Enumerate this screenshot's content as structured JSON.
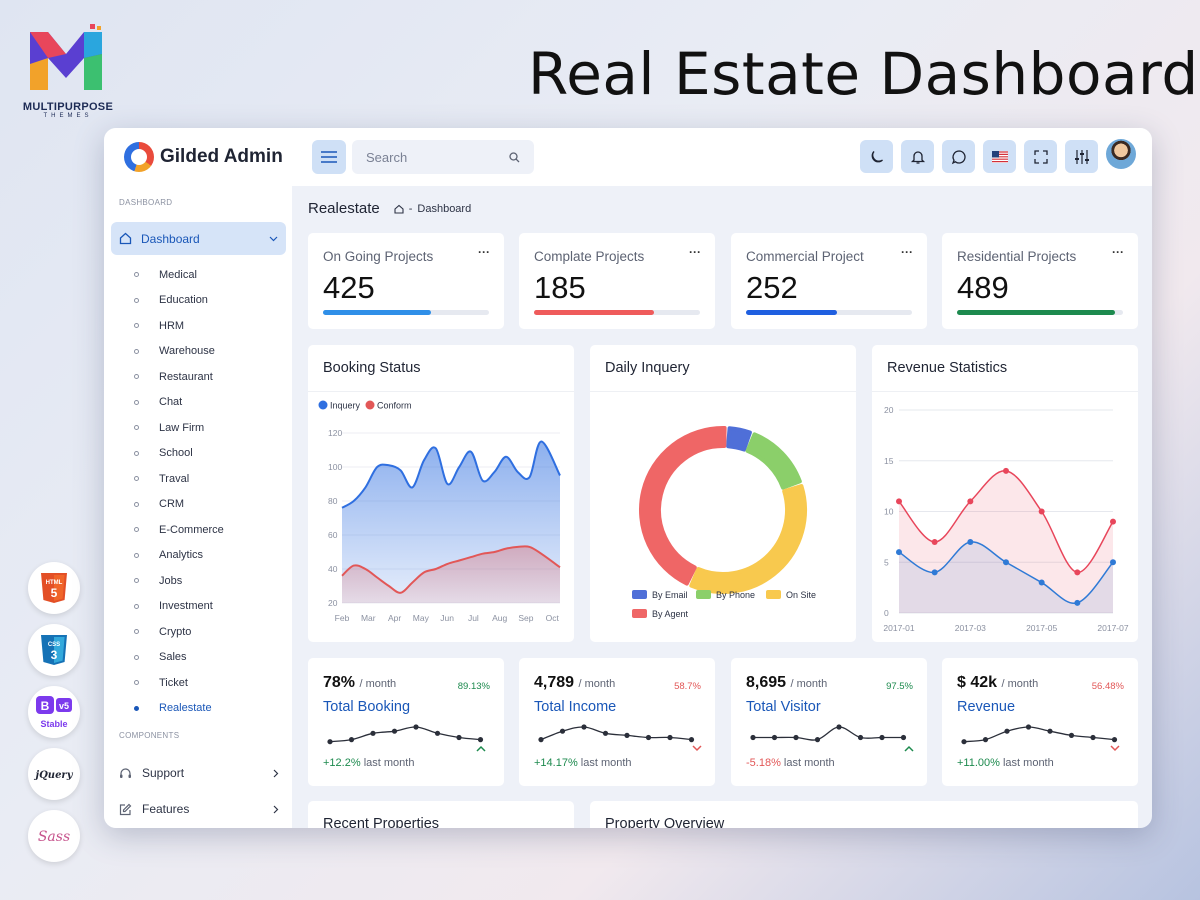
{
  "promo": {
    "brand_name": "MULTIPURPOSE",
    "brand_sub": "THEMES",
    "title": "Real Estate Dashboard",
    "badges": [
      {
        "name": "html5-badge",
        "label": "HTML 5",
        "color": "#e34f26"
      },
      {
        "name": "css3-badge",
        "label": "CSS 3",
        "color": "#1572b6"
      },
      {
        "name": "bootstrap-badge",
        "label": "B v5 Stable",
        "color": "#7c3aed"
      },
      {
        "name": "jquery-badge",
        "label": "jQuery",
        "color": "#1f2433"
      },
      {
        "name": "sass-badge",
        "label": "Sass",
        "color": "#c6538c"
      }
    ]
  },
  "app": {
    "logo_text": "Gilded Admin",
    "search_placeholder": "Search",
    "toolbar_icons": [
      "moon-icon",
      "bell-icon",
      "chat-icon",
      "us-flag-icon",
      "fullscreen-icon",
      "settings-sliders-icon"
    ]
  },
  "sidebar": {
    "section_dashboard": "DASHBOARD",
    "active_label": "Dashboard",
    "items": [
      "Medical",
      "Education",
      "HRM",
      "Warehouse",
      "Restaurant",
      "Chat",
      "Law Firm",
      "School",
      "Traval",
      "CRM",
      "E-Commerce",
      "Analytics",
      "Jobs",
      "Investment",
      "Crypto",
      "Sales",
      "Ticket",
      "Realestate"
    ],
    "active_item": "Realestate",
    "section_components": "COMPONENTS",
    "support": "Support",
    "features": "Features"
  },
  "breadcrumb": {
    "title": "Realestate",
    "path": "Dashboard"
  },
  "stats": [
    {
      "label": "On Going Projects",
      "value": "425",
      "progress": 0.65,
      "color": "#2f8fe8"
    },
    {
      "label": "Complate Projects",
      "value": "185",
      "progress": 0.72,
      "color": "#ef5b5b"
    },
    {
      "label": "Commercial Project",
      "value": "252",
      "progress": 0.55,
      "color": "#1f5fe0"
    },
    {
      "label": "Residential Projects",
      "value": "489",
      "progress": 0.95,
      "color": "#1d8a4e"
    }
  ],
  "more_glyph": "···",
  "panels": {
    "booking": "Booking Status",
    "daily": "Daily Inquery",
    "revenue": "Revenue Statistics",
    "recent": "Recent Properties",
    "overview": "Property Overview"
  },
  "chart_data": [
    {
      "type": "area",
      "title": "Booking Status",
      "categories": [
        "Feb",
        "Mar",
        "Apr",
        "May",
        "Jun",
        "Jul",
        "Aug",
        "Sep",
        "Oct"
      ],
      "ylim": [
        20,
        120
      ],
      "yticks": [
        20,
        40,
        60,
        80,
        100,
        120
      ],
      "legend": "top-left",
      "series": [
        {
          "name": "Inquery",
          "color": "#2f6fe0",
          "x": [
            0,
            0.5,
            1,
            1.5,
            2,
            2.5,
            3,
            3.5,
            4,
            4.5,
            5,
            5.5,
            6,
            6.5,
            7,
            7.5,
            8,
            8.5,
            9.3
          ],
          "values": [
            76,
            80,
            88,
            100,
            101,
            98,
            88,
            104,
            111,
            90,
            100,
            109,
            92,
            97,
            106,
            97,
            94,
            115,
            95
          ]
        },
        {
          "name": "Conform",
          "color": "#e25757",
          "x": [
            0,
            0.5,
            1,
            1.5,
            2,
            2.5,
            3,
            3.5,
            4,
            4.5,
            5,
            5.5,
            6,
            6.5,
            7,
            7.5,
            8,
            8.5,
            9.3
          ],
          "values": [
            36,
            42,
            40,
            35,
            30,
            26,
            32,
            38,
            40,
            43,
            45,
            47,
            49,
            50,
            52,
            53,
            53,
            49,
            41
          ]
        }
      ]
    },
    {
      "type": "pie",
      "title": "Daily Inquery",
      "legend": "bottom",
      "slices": [
        {
          "label": "By Email",
          "value": 5,
          "color": "#4f6fd8"
        },
        {
          "label": "By Phone",
          "value": 14,
          "color": "#8bcf6a"
        },
        {
          "label": "On Site",
          "value": 37,
          "color": "#f8c94e"
        },
        {
          "label": "By Agent",
          "value": 44,
          "color": "#ef6666"
        }
      ]
    },
    {
      "type": "line",
      "title": "Revenue Statistics",
      "x": [
        "2017-01",
        "2017-02",
        "2017-03",
        "2017-04",
        "2017-05",
        "2017-06",
        "2017-07"
      ],
      "xticks": [
        "2017-01",
        "2017-03",
        "2017-05",
        "2017-07"
      ],
      "ylim": [
        0,
        20
      ],
      "yticks": [
        0,
        5,
        10,
        15,
        20
      ],
      "series": [
        {
          "name": "",
          "color": "#e8465b",
          "values": [
            11,
            7,
            11,
            14,
            10,
            4,
            9
          ]
        },
        {
          "name": "",
          "color": "#2f7ad6",
          "values": [
            6,
            4,
            7,
            5,
            3,
            1,
            5
          ]
        }
      ]
    },
    {
      "type": "line",
      "title": "Total Booking",
      "values": [
        3,
        4,
        7,
        8,
        10,
        7,
        5,
        4
      ]
    },
    {
      "type": "line",
      "title": "Total Income",
      "values": [
        4,
        8,
        10,
        7,
        6,
        5,
        5,
        4
      ]
    },
    {
      "type": "line",
      "title": "Total Visitor",
      "values": [
        5,
        5,
        5,
        4,
        10,
        5,
        5,
        5
      ]
    },
    {
      "type": "line",
      "title": "Revenue",
      "values": [
        3,
        4,
        8,
        10,
        8,
        6,
        5,
        4
      ]
    }
  ],
  "minis": [
    {
      "value": "78%",
      "unit": "/ month",
      "change": "89.13%",
      "dir": "up",
      "name": "Total Booking",
      "delta": "+12.2%",
      "delta_text": "last month"
    },
    {
      "value": "4,789",
      "unit": "/ month",
      "change": "58.7%",
      "dir": "down",
      "name": "Total Income",
      "delta": "+14.17%",
      "delta_text": "last month"
    },
    {
      "value": "8,695",
      "unit": "/ month",
      "change": "97.5%",
      "dir": "up",
      "name": "Total Visitor",
      "delta": "-5.18%",
      "delta_text": "last month"
    },
    {
      "value": "$ 42k",
      "unit": "/ month",
      "change": "56.48%",
      "dir": "down",
      "name": "Revenue",
      "delta": "+11.00%",
      "delta_text": "last month"
    }
  ]
}
